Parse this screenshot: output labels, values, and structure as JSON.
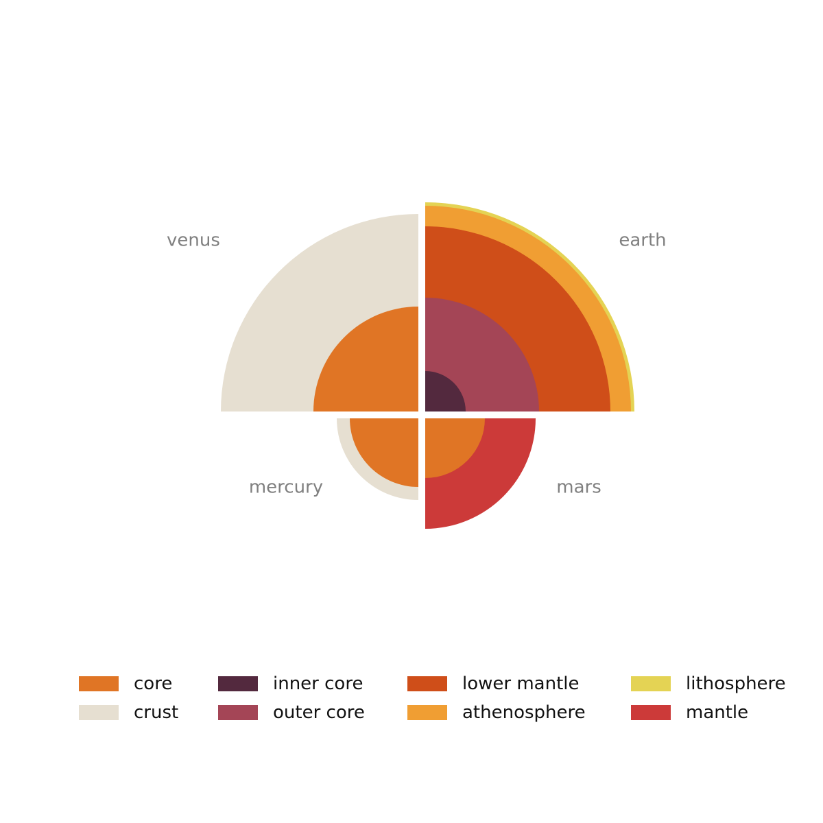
{
  "chart_data": {
    "type": "polar-quadrant",
    "title": "",
    "planets": [
      {
        "name": "venus",
        "quadrant": "top-left",
        "layers": [
          {
            "layer": "core",
            "radius": 153
          },
          {
            "layer": "crust",
            "radius": 288
          }
        ]
      },
      {
        "name": "earth",
        "quadrant": "top-right",
        "layers": [
          {
            "layer": "inner core",
            "radius": 59
          },
          {
            "layer": "outer core",
            "radius": 166
          },
          {
            "layer": "lower mantle",
            "radius": 270
          },
          {
            "layer": "athenosphere",
            "radius": 300
          },
          {
            "layer": "lithosphere",
            "radius": 305
          }
        ]
      },
      {
        "name": "mercury",
        "quadrant": "bottom-left",
        "layers": [
          {
            "layer": "core",
            "radius": 100
          },
          {
            "layer": "crust",
            "radius": 119
          }
        ]
      },
      {
        "name": "mars",
        "quadrant": "bottom-right",
        "layers": [
          {
            "layer": "core",
            "radius": 87
          },
          {
            "layer": "mantle",
            "radius": 161
          }
        ]
      }
    ],
    "legend": [
      {
        "label": "core",
        "color": "#e07525"
      },
      {
        "label": "crust",
        "color": "#e6dfd1"
      },
      {
        "label": "inner core",
        "color": "#53293e"
      },
      {
        "label": "outer core",
        "color": "#a44556"
      },
      {
        "label": "lower mantle",
        "color": "#cf4e19"
      },
      {
        "label": "athenosphere",
        "color": "#f09e33"
      },
      {
        "label": "lithosphere",
        "color": "#e4d354"
      },
      {
        "label": "mantle",
        "color": "#cc3a39"
      }
    ],
    "legend_placement": "bottom"
  }
}
